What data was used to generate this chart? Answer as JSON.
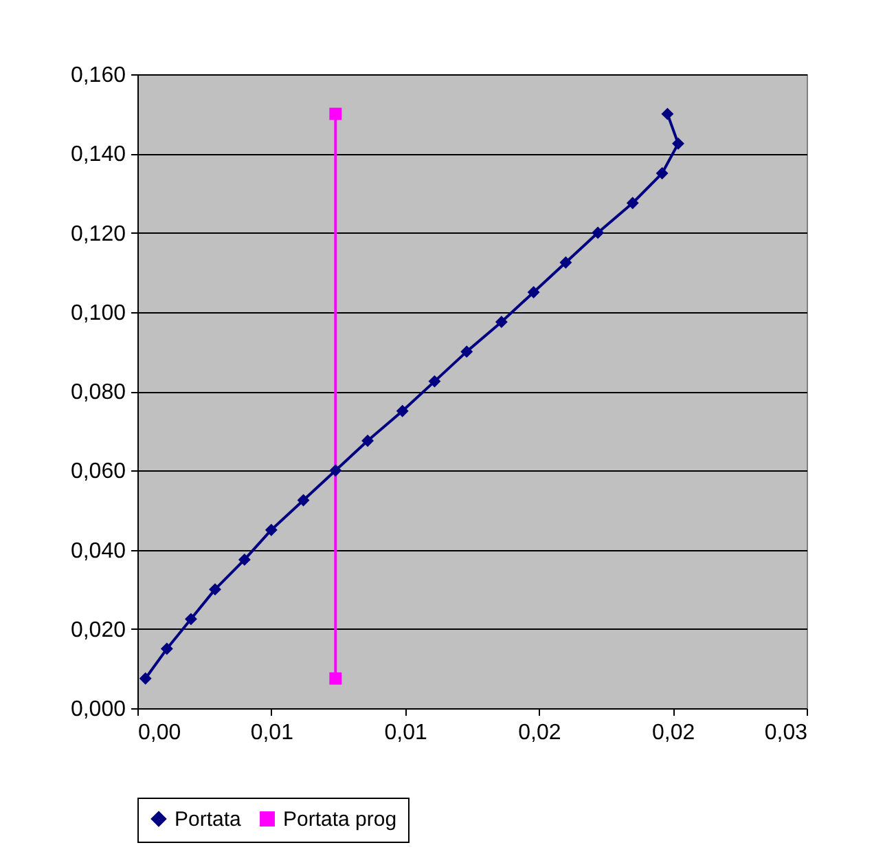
{
  "chart_data": {
    "type": "line",
    "series": [
      {
        "name": "Portata",
        "color": "#000080",
        "marker": "diamond",
        "x": [
          0.0003,
          0.0011,
          0.002,
          0.0029,
          0.004,
          0.005,
          0.0062,
          0.0074,
          0.0086,
          0.0099,
          0.0111,
          0.0123,
          0.0136,
          0.0148,
          0.016,
          0.0172,
          0.0185,
          0.0196,
          0.0202,
          0.0198
        ],
        "values": [
          0.0075,
          0.015,
          0.0225,
          0.03,
          0.0375,
          0.045,
          0.0525,
          0.06,
          0.0675,
          0.075,
          0.0825,
          0.09,
          0.0975,
          0.105,
          0.1125,
          0.12,
          0.1275,
          0.135,
          0.1425,
          0.15
        ]
      },
      {
        "name": "Portata prog",
        "color": "#ff00ff",
        "marker": "square",
        "x": [
          0.0074,
          0.0074
        ],
        "values": [
          0.0075,
          0.15
        ]
      }
    ],
    "xlim": [
      0,
      0.025
    ],
    "xticks": [
      {
        "value": 0,
        "label": "0,00"
      },
      {
        "value": 0.005,
        "label": "0,01"
      },
      {
        "value": 0.01,
        "label": "0,01"
      },
      {
        "value": 0.015,
        "label": "0,02"
      },
      {
        "value": 0.02,
        "label": "0,02"
      },
      {
        "value": 0.025,
        "label": "0,03"
      }
    ],
    "ylim": [
      0,
      0.16
    ],
    "yticks": [
      {
        "value": 0,
        "label": "0,000"
      },
      {
        "value": 0.02,
        "label": "0,020"
      },
      {
        "value": 0.04,
        "label": "0,040"
      },
      {
        "value": 0.06,
        "label": "0,060"
      },
      {
        "value": 0.08,
        "label": "0,080"
      },
      {
        "value": 0.1,
        "label": "0,100"
      },
      {
        "value": 0.12,
        "label": "0,120"
      },
      {
        "value": 0.14,
        "label": "0,140"
      },
      {
        "value": 0.16,
        "label": "0,160"
      }
    ],
    "grid": "y",
    "legend": "bottom",
    "line_style": "solid"
  }
}
